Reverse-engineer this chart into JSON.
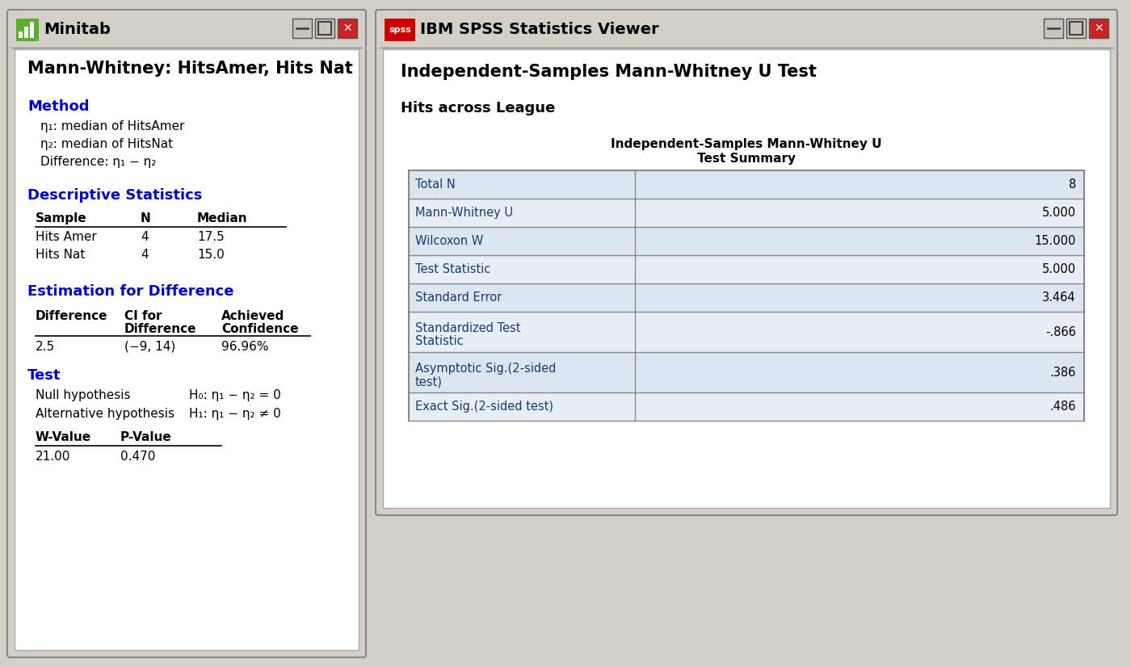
{
  "fig_width": 14.0,
  "fig_height": 8.26,
  "bg_color": "#d4d0c8",
  "minitab": {
    "title_bar_text": "Minitab",
    "main_title": "Mann-Whitney: HitsAmer, Hits Nat",
    "section_color": "#0000cc",
    "section1": "Method",
    "method_lines": [
      "η₁: median of HitsAmer",
      "η₂: median of HitsNat",
      "Difference: η₁ − η₂"
    ],
    "section2": "Descriptive Statistics",
    "desc_headers": [
      "Sample",
      "N",
      "Median"
    ],
    "desc_rows": [
      [
        "Hits Amer",
        "4",
        "17.5"
      ],
      [
        "Hits Nat",
        "4",
        "15.0"
      ]
    ],
    "section3": "Estimation for Difference",
    "est_row": [
      "2.5",
      "(−9, 14)",
      "96.96%"
    ],
    "section4": "Test",
    "test_lines": [
      "Null hypothesis",
      "Alternative hypothesis"
    ],
    "test_hyp": [
      "H₀: η₁ − η₂ = 0",
      "H₁: η₁ − η₂ ≠ 0"
    ],
    "test_headers": [
      "W-Value",
      "P-Value"
    ],
    "test_row": [
      "21.00",
      "0.470"
    ]
  },
  "spss": {
    "title_bar_text": "IBM SPSS Statistics Viewer",
    "main_title": "Independent-Samples Mann-Whitney U Test",
    "subtitle": "Hits across League",
    "table_title_line1": "Independent-Samples Mann-Whitney U",
    "table_title_line2": "Test Summary",
    "spss_rows": [
      [
        "Total N",
        "8"
      ],
      [
        "Mann-Whitney U",
        "5.000"
      ],
      [
        "Wilcoxon W",
        "15.000"
      ],
      [
        "Test Statistic",
        "5.000"
      ],
      [
        "Standard Error",
        "3.464"
      ],
      [
        "Standardized Test\nStatistic",
        "-.866"
      ],
      [
        "Asymptotic Sig.(2-sided\ntest)",
        ".386"
      ],
      [
        "Exact Sig.(2-sided test)",
        ".486"
      ]
    ]
  }
}
